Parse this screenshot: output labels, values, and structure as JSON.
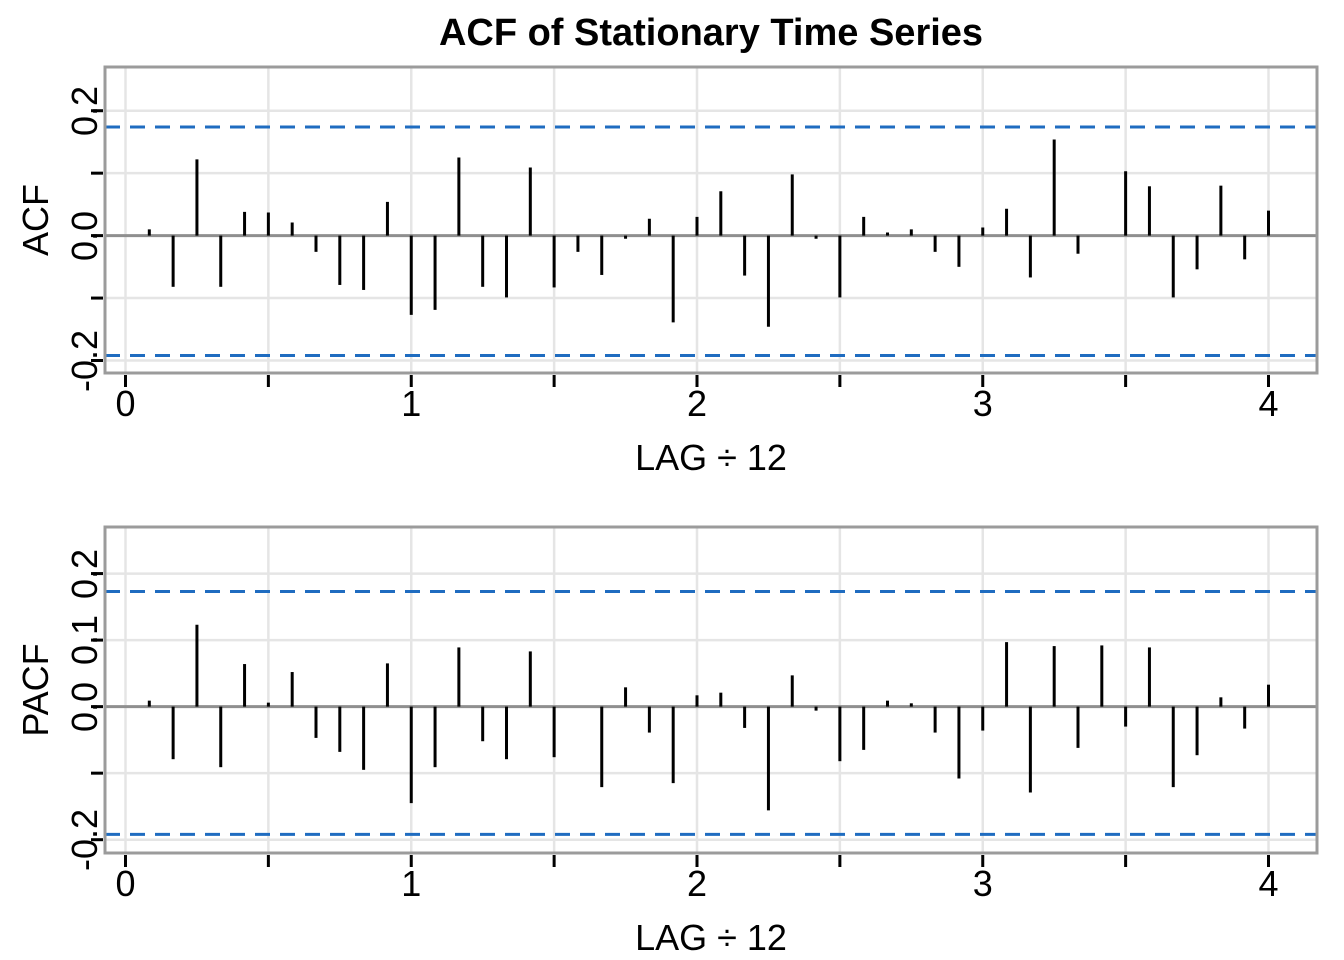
{
  "figure": {
    "title": "ACF of Stationary Time Series",
    "background": "#ffffff"
  },
  "colors": {
    "spike": "#000000",
    "zero_line": "#8f8f8f",
    "panel_border": "#9b9b9b",
    "gridline": "#e5e5e5",
    "confidence_band": "#1f6cc0",
    "tick": "#000000",
    "text": "#000000"
  },
  "chart_data": [
    {
      "type": "bar",
      "panel": "top",
      "title": "ACF of Stationary Time Series",
      "xlabel": "LAG ÷ 12",
      "ylabel": "ACF",
      "xlim": [
        -0.072,
        4.169
      ],
      "ylim": [
        -0.22,
        0.27
      ],
      "x_major_ticks": [
        "0",
        "1",
        "2",
        "3",
        "4"
      ],
      "x_major_tick_values": [
        0,
        1,
        2,
        3,
        4
      ],
      "x_minor_tick_step": 0.5,
      "grid": "on",
      "y_ticks": [
        {
          "value": 0.2,
          "label": "0.2"
        },
        {
          "value": 0.1,
          "label": ""
        },
        {
          "value": 0.0,
          "label": "0.0"
        },
        {
          "value": -0.1,
          "label": ""
        },
        {
          "value": -0.2,
          "label": "-0.2"
        }
      ],
      "confidence_bounds": {
        "upper": 0.174,
        "lower": -0.192,
        "style": "dashed"
      },
      "lag_x_step": 0.08333,
      "first_lag": 1,
      "values": [
        0.01,
        -0.082,
        0.122,
        -0.082,
        0.038,
        0.037,
        0.021,
        -0.026,
        -0.079,
        -0.087,
        0.054,
        -0.127,
        -0.119,
        0.125,
        -0.082,
        -0.099,
        0.109,
        -0.083,
        -0.026,
        -0.063,
        -0.005,
        0.027,
        -0.139,
        0.03,
        0.071,
        -0.064,
        -0.146,
        0.098,
        -0.005,
        -0.099,
        0.03,
        0.005,
        0.01,
        -0.026,
        -0.05,
        0.013,
        0.043,
        -0.067,
        0.154,
        -0.029,
        0.0,
        0.103,
        0.079,
        -0.099,
        -0.054,
        0.08,
        -0.038,
        0.04
      ]
    },
    {
      "type": "bar",
      "panel": "bottom",
      "title": "",
      "xlabel": "LAG ÷ 12",
      "ylabel": "PACF",
      "xlim": [
        -0.072,
        4.169
      ],
      "ylim": [
        -0.22,
        0.27
      ],
      "x_major_ticks": [
        "0",
        "1",
        "2",
        "3",
        "4"
      ],
      "x_major_tick_values": [
        0,
        1,
        2,
        3,
        4
      ],
      "x_minor_tick_step": 0.5,
      "grid": "on",
      "y_ticks": [
        {
          "value": 0.2,
          "label": "0.2"
        },
        {
          "value": 0.1,
          "label": "0.1"
        },
        {
          "value": 0.0,
          "label": "0.0"
        },
        {
          "value": -0.1,
          "label": ""
        },
        {
          "value": -0.2,
          "label": "-0.2"
        }
      ],
      "confidence_bounds": {
        "upper": 0.173,
        "lower": -0.192,
        "style": "dashed"
      },
      "lag_x_step": 0.08333,
      "first_lag": 1,
      "values": [
        0.009,
        -0.079,
        0.123,
        -0.091,
        0.064,
        0.006,
        0.052,
        -0.047,
        -0.068,
        -0.095,
        0.065,
        -0.145,
        -0.091,
        0.089,
        -0.052,
        -0.079,
        0.083,
        -0.076,
        0.0,
        -0.121,
        0.029,
        -0.039,
        -0.115,
        0.017,
        0.021,
        -0.032,
        -0.156,
        0.047,
        -0.006,
        -0.082,
        -0.065,
        0.009,
        0.005,
        -0.039,
        -0.108,
        -0.036,
        0.097,
        -0.129,
        0.091,
        -0.062,
        0.092,
        -0.03,
        0.089,
        -0.121,
        -0.073,
        0.014,
        -0.033,
        0.033
      ]
    }
  ]
}
